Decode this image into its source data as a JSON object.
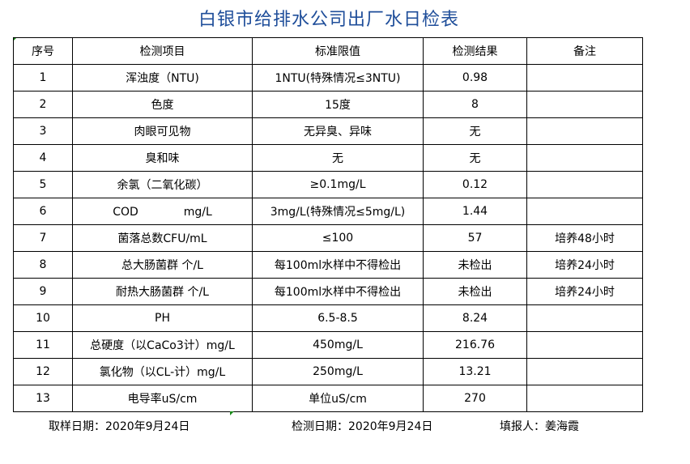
{
  "title": "白银市给排水公司出厂水日检表",
  "table": {
    "headers": [
      "序号",
      "检测项目",
      "标准限值",
      "检测结果",
      "备注"
    ],
    "rows": [
      [
        "1",
        "浑浊度（NTU)",
        "1NTU(特殊情况≤3NTU)",
        "0.98",
        ""
      ],
      [
        "2",
        "色度",
        "15度",
        "8",
        ""
      ],
      [
        "3",
        "肉眼可见物",
        "无异臭、异味",
        "无",
        ""
      ],
      [
        "4",
        "臭和味",
        "无",
        "无",
        ""
      ],
      [
        "5",
        "余氯（二氧化碳）",
        "≥0.1mg/L",
        "0.12",
        ""
      ],
      [
        "6",
        "COD　　　　mg/L",
        "3mg/L(特殊情况≤5mg/L)",
        "1.44",
        ""
      ],
      [
        "7",
        "菌落总数CFU/mL",
        "≤100",
        "57",
        "培养48小时"
      ],
      [
        "8",
        "总大肠菌群 个/L",
        "每100ml水样中不得检出",
        "未检出",
        "培养24小时"
      ],
      [
        "9",
        "耐热大肠菌群 个/L",
        "每100ml水样中不得检出",
        "未检出",
        "培养24小时"
      ],
      [
        "10",
        "PH",
        "6.5-8.5",
        "8.24",
        ""
      ],
      [
        "11",
        "总硬度（以CaCo3计）mg/L",
        "450mg/L",
        "216.76",
        ""
      ],
      [
        "12",
        "氯化物（以CL-计）mg/L",
        "250mg/L",
        "13.21",
        ""
      ],
      [
        "13",
        "电导率uS/cm",
        "单位uS/cm",
        "270",
        ""
      ]
    ]
  },
  "footer": {
    "sampling_date": "取样日期：2020年9月24日",
    "test_date": "检测日期：2020年9月24日",
    "reporter": "填报人：姜海霞"
  },
  "colors": {
    "title": "#1f4e9a",
    "cell_marker": "#1a8a1a"
  }
}
